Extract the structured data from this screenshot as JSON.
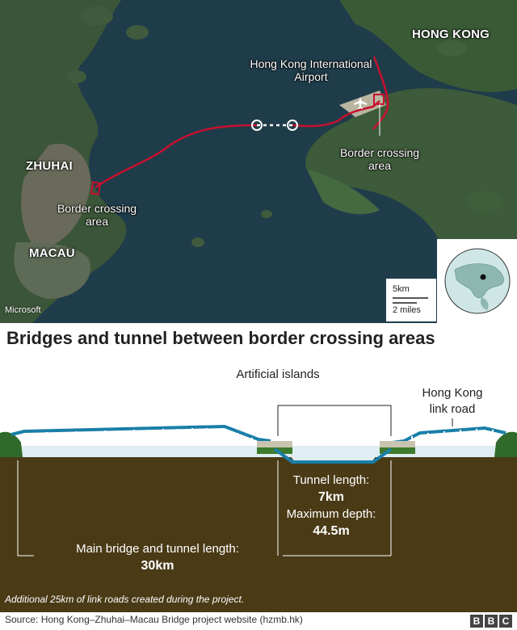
{
  "map": {
    "labels": {
      "hong_kong": "HONG KONG",
      "airport": "Hong Kong International Airport",
      "zhuhai": "ZHUHAI",
      "macau": "MACAU",
      "border_left": "Border crossing area",
      "border_right": "Border crossing area"
    },
    "credit": "Microsoft",
    "scale": {
      "metric": "5km",
      "imperial": "2 miles"
    },
    "colors": {
      "route": "#c8102e",
      "sea": "#1f3c4a",
      "land": "#3d5a3a"
    }
  },
  "title": "Bridges and tunnel between border crossing areas",
  "diagram": {
    "artificial_islands": "Artificial islands",
    "hk_link_road": "Hong Kong link road",
    "tunnel_length_label": "Tunnel length:",
    "tunnel_length_value": "7km",
    "max_depth_label": "Maximum depth:",
    "max_depth_value": "44.5m",
    "main_length_label": "Main bridge and tunnel length:",
    "main_length_value": "30km",
    "note": "Additional 25km of link roads created during the project.",
    "colors": {
      "bridge": "#1a7fa8",
      "ground": "#4a3a16",
      "water": "#dfeef2",
      "tunnel": "#1a7fa8"
    }
  },
  "footer": {
    "source": "Source: Hong Kong–Zhuhai–Macau Bridge project website (hzmb.hk)",
    "logo": [
      "B",
      "B",
      "C"
    ]
  }
}
